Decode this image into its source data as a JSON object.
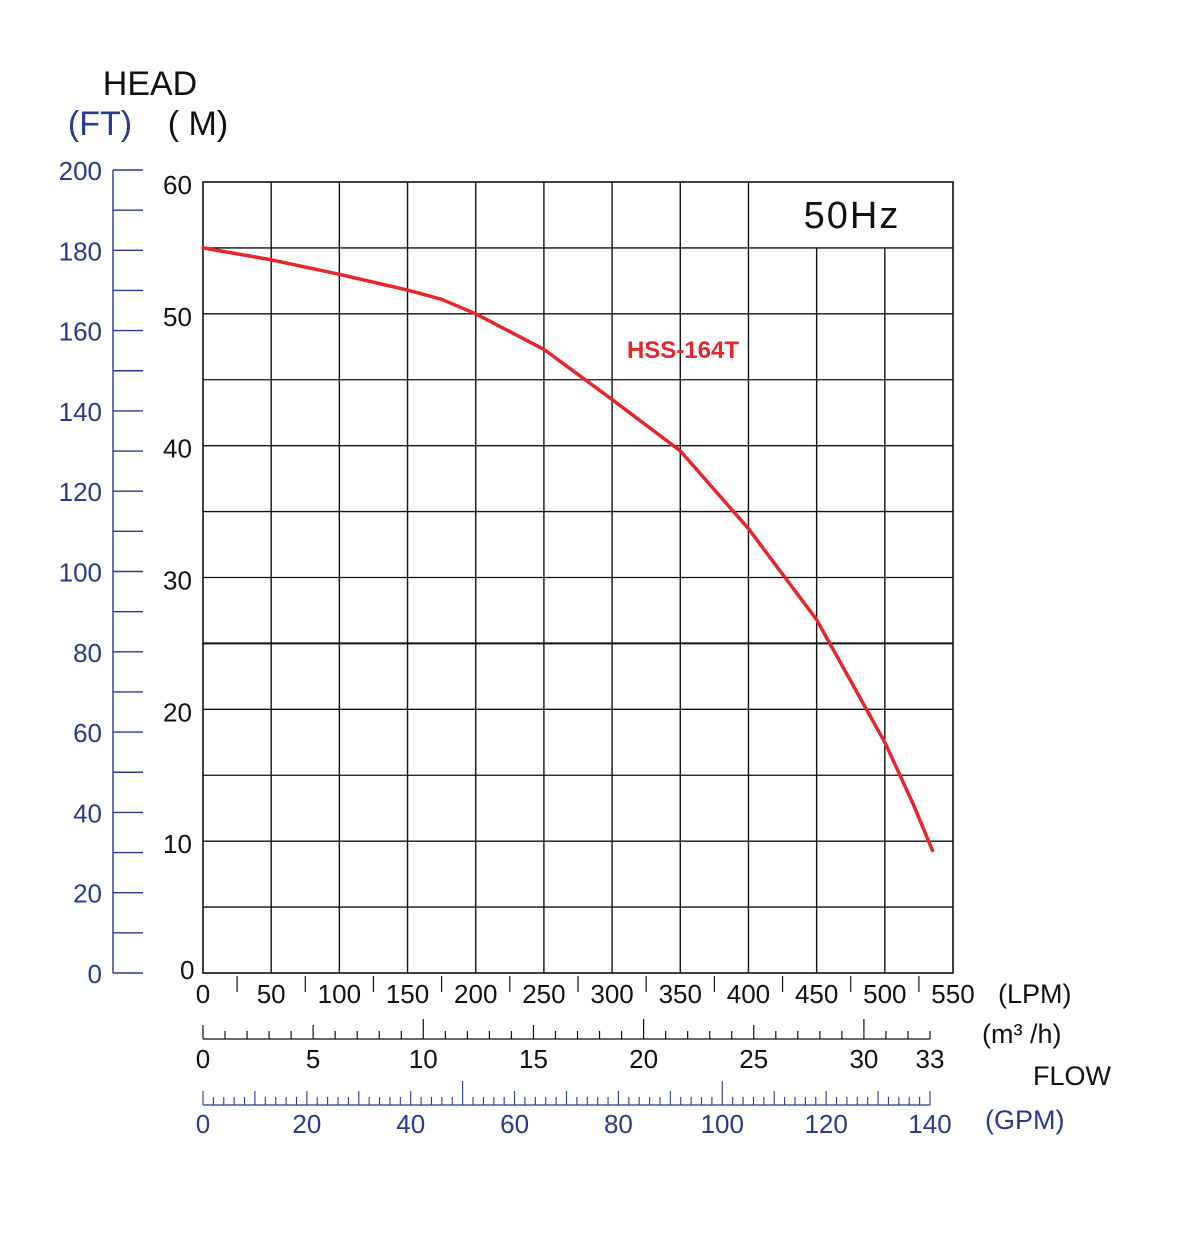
{
  "chart_data": {
    "type": "line",
    "title": "HEAD",
    "frequency_label": "50Hz",
    "xlabel": "FLOW",
    "ylabel": "HEAD",
    "y_units": {
      "m": "( M)",
      "ft": "(FT)"
    },
    "x_units": {
      "lpm": "(LPM)",
      "m3h": "(m³ /h)",
      "gpm": "(GPM)"
    },
    "xlim": [
      0,
      550
    ],
    "ylim": [
      0,
      60
    ],
    "ft_ylim": [
      0,
      200
    ],
    "m3h_max": 33,
    "gpm_max": 140,
    "x_ticks_lpm": [
      "0",
      "50",
      "100",
      "150",
      "200",
      "250",
      "300",
      "350",
      "400",
      "450",
      "500",
      "550"
    ],
    "x_ticks_m3h": [
      "0",
      "5",
      "10",
      "15",
      "20",
      "25",
      "30",
      "33"
    ],
    "x_ticks_gpm": [
      "0",
      "20",
      "40",
      "60",
      "80",
      "100",
      "120",
      "140"
    ],
    "y_ticks_m": [
      "0",
      "10",
      "20",
      "30",
      "40",
      "50",
      "60"
    ],
    "y_ticks_ft": [
      "0",
      "20",
      "40",
      "60",
      "80",
      "100",
      "120",
      "140",
      "160",
      "180",
      "200"
    ],
    "grid": true,
    "series": [
      {
        "name": "HSS-164T",
        "color": "#e8242c",
        "x": [
          0,
          50,
          100,
          150,
          175,
          200,
          250,
          300,
          350,
          400,
          450,
          500,
          520,
          535
        ],
        "y": [
          55,
          54.1,
          53,
          51.8,
          51.1,
          50,
          47.3,
          43.5,
          39.6,
          33.7,
          26.8,
          17.5,
          13,
          9.3
        ]
      }
    ]
  },
  "colors": {
    "blue": "#2a3990",
    "grid": "#111111",
    "curve": "#e8242c"
  }
}
